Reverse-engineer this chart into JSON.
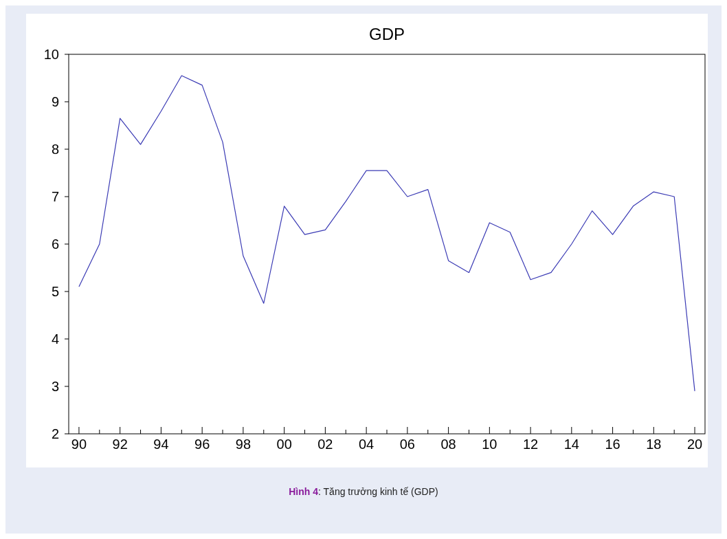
{
  "chart_data": {
    "type": "line",
    "title": "GDP",
    "x": [
      1990,
      1991,
      1992,
      1993,
      1994,
      1995,
      1996,
      1997,
      1998,
      1999,
      2000,
      2001,
      2002,
      2003,
      2004,
      2005,
      2006,
      2007,
      2008,
      2009,
      2010,
      2011,
      2012,
      2013,
      2014,
      2015,
      2016,
      2017,
      2018,
      2019,
      2020
    ],
    "series": [
      {
        "color": "#3a3ab4",
        "values": [
          5.1,
          6.0,
          8.65,
          8.1,
          8.8,
          9.55,
          9.35,
          8.15,
          5.75,
          4.75,
          6.8,
          6.2,
          6.3,
          6.9,
          7.55,
          7.55,
          7.0,
          7.15,
          5.65,
          5.4,
          6.45,
          6.25,
          5.25,
          5.4,
          6.0,
          6.7,
          6.2,
          6.8,
          7.1,
          7.0,
          2.9
        ]
      }
    ],
    "xlim": [
      1989.5,
      2020.5
    ],
    "xticks": [
      {
        "value": 1990,
        "label": "90"
      },
      {
        "value": 1991,
        "label": null
      },
      {
        "value": 1992,
        "label": "92"
      },
      {
        "value": 1993,
        "label": null
      },
      {
        "value": 1994,
        "label": "94"
      },
      {
        "value": 1995,
        "label": null
      },
      {
        "value": 1996,
        "label": "96"
      },
      {
        "value": 1997,
        "label": null
      },
      {
        "value": 1998,
        "label": "98"
      },
      {
        "value": 1999,
        "label": null
      },
      {
        "value": 2000,
        "label": "00"
      },
      {
        "value": 2001,
        "label": null
      },
      {
        "value": 2002,
        "label": "02"
      },
      {
        "value": 2003,
        "label": null
      },
      {
        "value": 2004,
        "label": "04"
      },
      {
        "value": 2005,
        "label": null
      },
      {
        "value": 2006,
        "label": "06"
      },
      {
        "value": 2007,
        "label": null
      },
      {
        "value": 2008,
        "label": "08"
      },
      {
        "value": 2009,
        "label": null
      },
      {
        "value": 2010,
        "label": "10"
      },
      {
        "value": 2011,
        "label": null
      },
      {
        "value": 2012,
        "label": "12"
      },
      {
        "value": 2013,
        "label": null
      },
      {
        "value": 2014,
        "label": "14"
      },
      {
        "value": 2015,
        "label": null
      },
      {
        "value": 2016,
        "label": "16"
      },
      {
        "value": 2017,
        "label": null
      },
      {
        "value": 2018,
        "label": "18"
      },
      {
        "value": 2019,
        "label": null
      },
      {
        "value": 2020,
        "label": "20"
      }
    ],
    "ylim": [
      2,
      10
    ],
    "yticks": [
      2,
      3,
      4,
      5,
      6,
      7,
      8,
      9,
      10
    ],
    "grid": false,
    "marker": "none",
    "line_style": "solid",
    "annotations": [
      "Hình 4: Tăng trưởng kinh tế (GDP)"
    ]
  }
}
